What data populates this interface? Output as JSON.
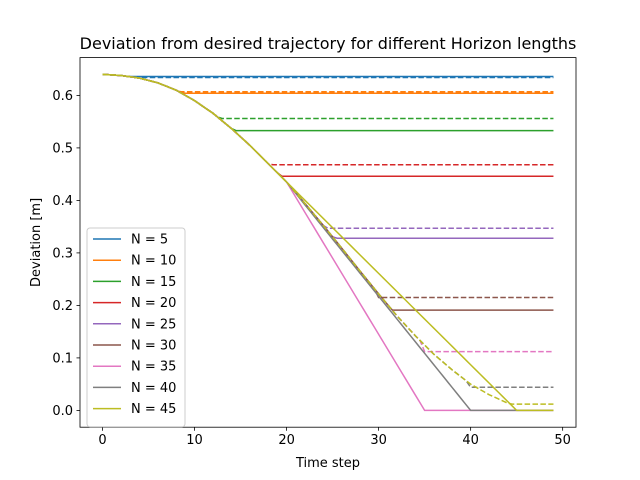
{
  "chart_data": {
    "type": "line",
    "title": "Deviation from desired trajectory for different Horizon lengths",
    "xlabel": "Time step",
    "ylabel": "Deviation [m]",
    "xlim": [
      -2.45,
      51.45
    ],
    "ylim": [
      -0.032,
      0.672
    ],
    "xticks": [
      0,
      10,
      20,
      30,
      40,
      50
    ],
    "yticks": [
      0.0,
      0.1,
      0.2,
      0.3,
      0.4,
      0.5,
      0.6
    ],
    "legend_position": "lower-left",
    "base_curve": [
      [
        0,
        0.64
      ],
      [
        2,
        0.638
      ],
      [
        4,
        0.633
      ],
      [
        6,
        0.624
      ],
      [
        8,
        0.61
      ],
      [
        10,
        0.59
      ],
      [
        12,
        0.566
      ],
      [
        14,
        0.537
      ],
      [
        16,
        0.505
      ],
      [
        18,
        0.47
      ],
      [
        20,
        0.435
      ],
      [
        22,
        0.394
      ],
      [
        24,
        0.352
      ],
      [
        26,
        0.309
      ],
      [
        28,
        0.265
      ],
      [
        30,
        0.222
      ],
      [
        32,
        0.18
      ],
      [
        34,
        0.142
      ],
      [
        36,
        0.107
      ],
      [
        38,
        0.077
      ],
      [
        40,
        0.05
      ],
      [
        42,
        0.03
      ],
      [
        44,
        0.014
      ],
      [
        45,
        0.008
      ],
      [
        46,
        0.003
      ],
      [
        48,
        0.0
      ],
      [
        49,
        0.0
      ]
    ],
    "series": [
      {
        "name": "N = 5",
        "color": "#1f77b4",
        "horizon": 5,
        "solid_final": 0.636,
        "dashed_final": 0.634
      },
      {
        "name": "N = 10",
        "color": "#ff7f0e",
        "horizon": 10,
        "solid_final": 0.604,
        "dashed_final": 0.607
      },
      {
        "name": "N = 15",
        "color": "#2ca02c",
        "horizon": 15,
        "solid_final": 0.533,
        "dashed_final": 0.556
      },
      {
        "name": "N = 20",
        "color": "#d62728",
        "horizon": 20,
        "solid_final": 0.446,
        "dashed_final": 0.468
      },
      {
        "name": "N = 25",
        "color": "#9467bd",
        "horizon": 25,
        "solid_final": 0.328,
        "dashed_final": 0.347
      },
      {
        "name": "N = 30",
        "color": "#8c564b",
        "horizon": 30,
        "solid_final": 0.191,
        "dashed_final": 0.215
      },
      {
        "name": "N = 35",
        "color": "#e377c2",
        "horizon": 35,
        "solid_final": 0.0,
        "dashed_final": 0.112
      },
      {
        "name": "N = 40",
        "color": "#7f7f7f",
        "horizon": 40,
        "solid_final": 0.0,
        "dashed_final": 0.044
      },
      {
        "name": "N = 45",
        "color": "#bcbd22",
        "horizon": 45,
        "solid_final": 0.0,
        "dashed_final": 0.012
      }
    ],
    "x_end": 49
  }
}
